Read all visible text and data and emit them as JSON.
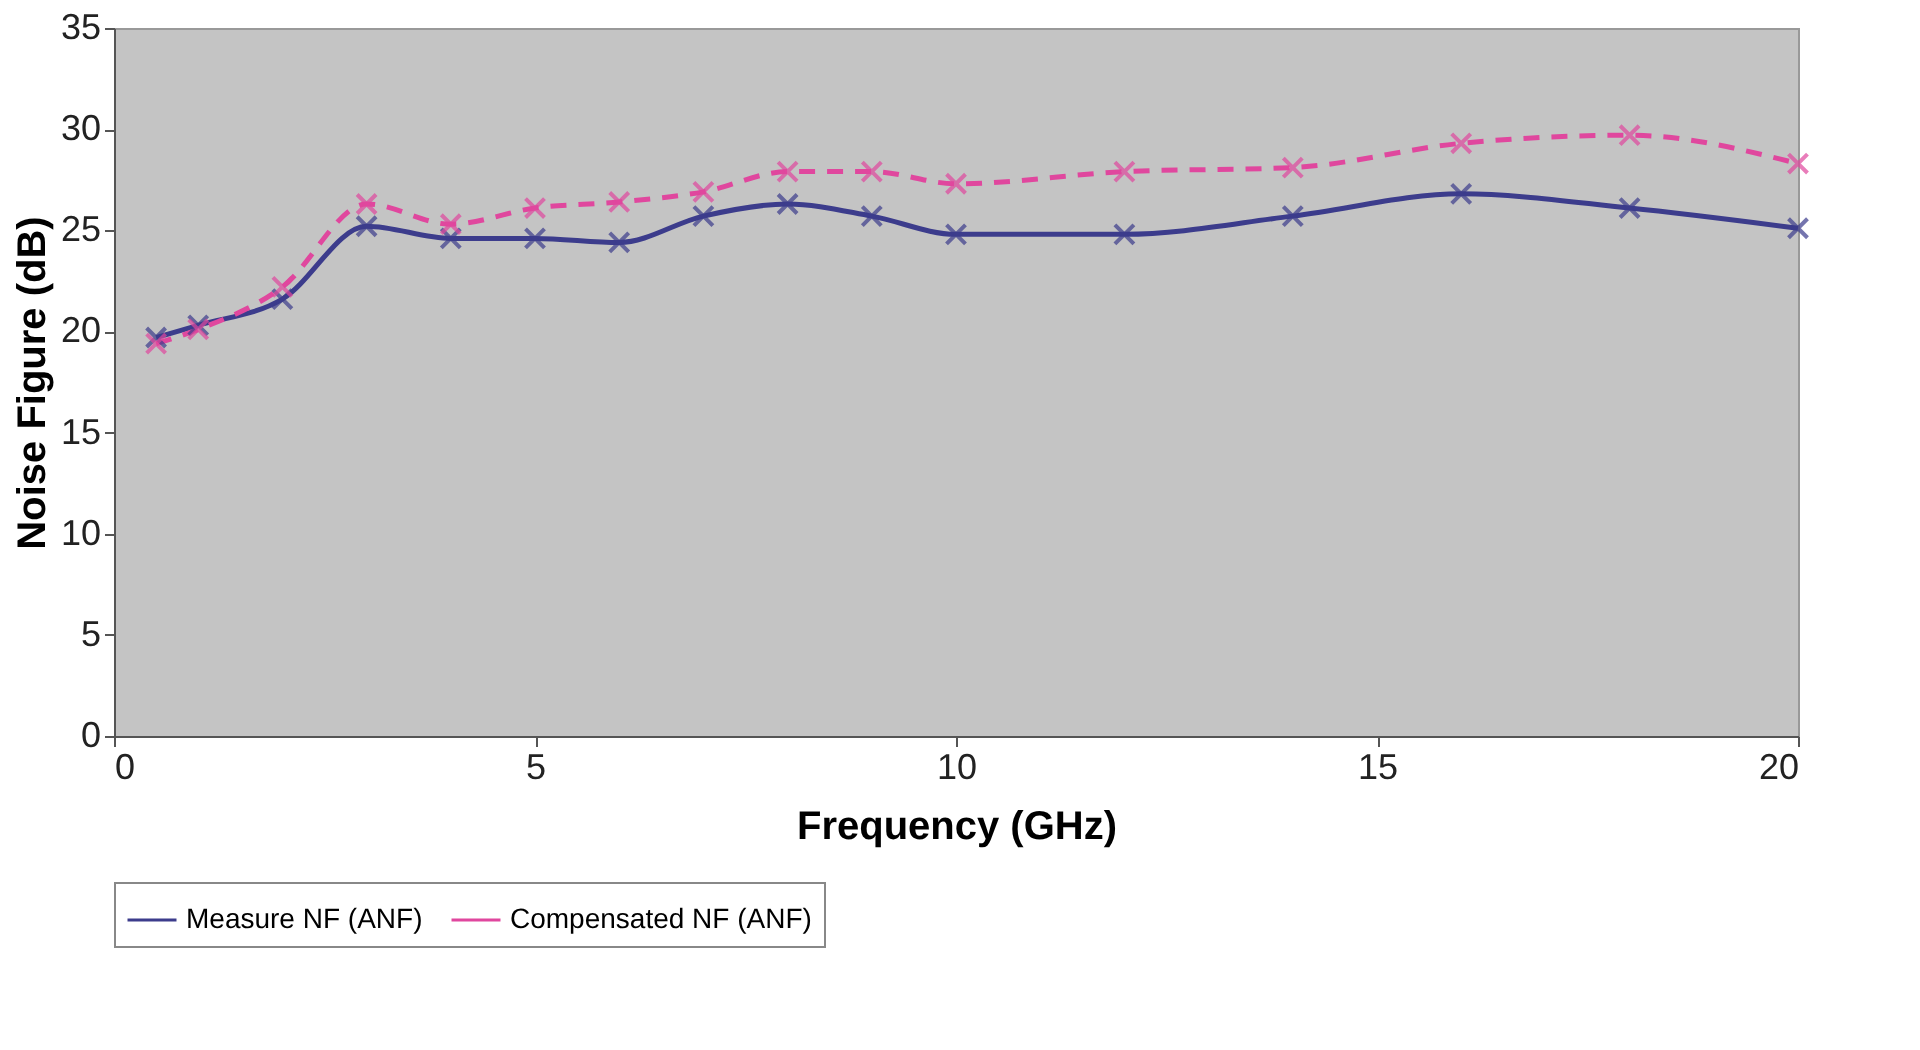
{
  "chart_data": {
    "type": "line",
    "xlabel": "Frequency (GHz)",
    "ylabel": "Noise Figure (dB)",
    "x": [
      0.5,
      1,
      2,
      3,
      4,
      5,
      6,
      7,
      8,
      9,
      10,
      12,
      14,
      16,
      18,
      20
    ],
    "series": [
      {
        "name": "Measure NF (ANF)",
        "color": "#3c3c8c",
        "line_style": "solid",
        "values": [
          19.7,
          20.3,
          21.6,
          25.2,
          24.6,
          24.6,
          24.4,
          25.7,
          26.3,
          25.7,
          24.8,
          24.8,
          25.7,
          26.8,
          26.1,
          25.1
        ]
      },
      {
        "name": "Compensated NF (ANF)",
        "color": "#e0479e",
        "line_style": "dashed",
        "values": [
          19.4,
          20.1,
          22.2,
          26.3,
          25.3,
          26.1,
          26.4,
          26.9,
          27.9,
          27.9,
          27.3,
          27.9,
          28.1,
          29.3,
          29.7,
          28.3
        ]
      }
    ],
    "xlim": [
      0,
      20
    ],
    "xticks": [
      0,
      5,
      10,
      15,
      20
    ],
    "ylim": [
      0,
      35
    ],
    "yticks": [
      0,
      5,
      10,
      15,
      20,
      25,
      30,
      35
    ],
    "grid": false,
    "legend": "bottom",
    "marker": "cross"
  }
}
